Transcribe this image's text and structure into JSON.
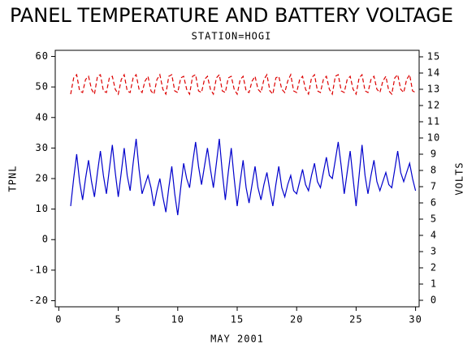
{
  "chart_data": {
    "type": "line",
    "title": "PANEL TEMPERATURE AND BATTERY VOLTAGE",
    "subtitle": "STATION=HOGI",
    "x_label": "MAY 2001",
    "y_label": "TPNL",
    "y2_label": "VOLTS",
    "xlim": [
      -0.3,
      30.3
    ],
    "xticks": [
      0,
      5,
      10,
      15,
      20,
      25,
      30
    ],
    "ylim": [
      -22,
      62
    ],
    "yticks": [
      -20,
      -10,
      0,
      10,
      20,
      30,
      40,
      50,
      60
    ],
    "y2lim": [
      -0.4,
      15.4
    ],
    "y2ticks": [
      0,
      1,
      2,
      3,
      4,
      5,
      6,
      7,
      8,
      9,
      10,
      11,
      12,
      13,
      14,
      15
    ],
    "x": [
      1,
      1.25,
      1.5,
      1.75,
      2,
      2.25,
      2.5,
      2.75,
      3,
      3.25,
      3.5,
      3.75,
      4,
      4.25,
      4.5,
      4.75,
      5,
      5.25,
      5.5,
      5.75,
      6,
      6.25,
      6.5,
      6.75,
      7,
      7.25,
      7.5,
      7.75,
      8,
      8.25,
      8.5,
      8.75,
      9,
      9.25,
      9.5,
      9.75,
      10,
      10.25,
      10.5,
      10.75,
      11,
      11.25,
      11.5,
      11.75,
      12,
      12.25,
      12.5,
      12.75,
      13,
      13.25,
      13.5,
      13.75,
      14,
      14.25,
      14.5,
      14.75,
      15,
      15.25,
      15.5,
      15.75,
      16,
      16.25,
      16.5,
      16.75,
      17,
      17.25,
      17.5,
      17.75,
      18,
      18.25,
      18.5,
      18.75,
      19,
      19.25,
      19.5,
      19.75,
      20,
      20.25,
      20.5,
      20.75,
      21,
      21.25,
      21.5,
      21.75,
      22,
      22.25,
      22.5,
      22.75,
      23,
      23.25,
      23.5,
      23.75,
      24,
      24.25,
      24.5,
      24.75,
      25,
      25.25,
      25.5,
      25.75,
      26,
      26.25,
      26.5,
      26.75,
      27,
      27.25,
      27.5,
      27.75,
      28,
      28.25,
      28.5,
      28.75,
      29,
      29.25,
      29.5,
      29.75,
      30
    ],
    "series": [
      {
        "name": "TPNL",
        "color": "#0000cc",
        "dashed": false,
        "values": [
          11,
          20,
          28,
          19,
          13,
          20,
          26,
          19,
          14,
          22,
          29,
          21,
          15,
          23,
          31,
          22,
          14,
          22,
          30,
          21,
          16,
          25,
          33,
          23,
          15,
          18,
          21,
          17,
          11,
          16,
          20,
          14,
          9,
          17,
          24,
          15,
          8,
          17,
          25,
          20,
          17,
          25,
          32,
          24,
          18,
          24,
          30,
          23,
          17,
          25,
          33,
          22,
          13,
          22,
          30,
          20,
          11,
          19,
          26,
          17,
          12,
          18,
          24,
          17,
          13,
          18,
          22,
          16,
          11,
          18,
          24,
          17,
          14,
          18,
          21,
          16,
          15,
          19,
          23,
          18,
          16,
          21,
          25,
          19,
          17,
          22,
          27,
          21,
          20,
          26,
          32,
          24,
          15,
          22,
          29,
          20,
          11,
          21,
          31,
          21,
          15,
          21,
          26,
          19,
          16,
          19,
          22,
          18,
          17,
          23,
          29,
          22,
          19,
          22,
          25,
          20,
          16
        ]
      },
      {
        "name": "VOLTS",
        "color": "#dd0000",
        "dashed": true,
        "axis": "y2",
        "values": [
          12.7,
          13.7,
          13.9,
          12.9,
          12.8,
          13.6,
          13.8,
          13.0,
          12.7,
          13.8,
          13.9,
          12.9,
          12.8,
          13.7,
          13.8,
          13.0,
          12.7,
          13.6,
          13.9,
          12.9,
          12.8,
          13.7,
          13.9,
          13.0,
          12.8,
          13.5,
          13.8,
          12.9,
          12.7,
          13.6,
          13.9,
          13.0,
          12.7,
          13.8,
          13.9,
          12.9,
          12.8,
          13.7,
          13.8,
          13.0,
          12.7,
          13.8,
          13.9,
          12.9,
          12.8,
          13.6,
          13.8,
          13.0,
          12.7,
          13.7,
          13.9,
          12.9,
          12.8,
          13.7,
          13.8,
          13.0,
          12.7,
          13.6,
          13.8,
          12.9,
          12.8,
          13.5,
          13.8,
          13.0,
          12.8,
          13.6,
          13.9,
          12.9,
          12.7,
          13.7,
          13.8,
          13.0,
          12.8,
          13.5,
          13.9,
          12.9,
          12.8,
          13.6,
          13.8,
          13.0,
          12.7,
          13.7,
          13.9,
          12.9,
          12.8,
          13.6,
          13.8,
          13.0,
          12.7,
          13.8,
          13.9,
          12.9,
          12.8,
          13.6,
          13.8,
          13.0,
          12.7,
          13.7,
          13.9,
          12.9,
          12.8,
          13.6,
          13.8,
          13.0,
          12.8,
          13.5,
          13.8,
          12.9,
          12.7,
          13.7,
          13.9,
          13.0,
          12.8,
          13.6,
          13.9,
          12.9,
          12.8
        ]
      }
    ]
  }
}
